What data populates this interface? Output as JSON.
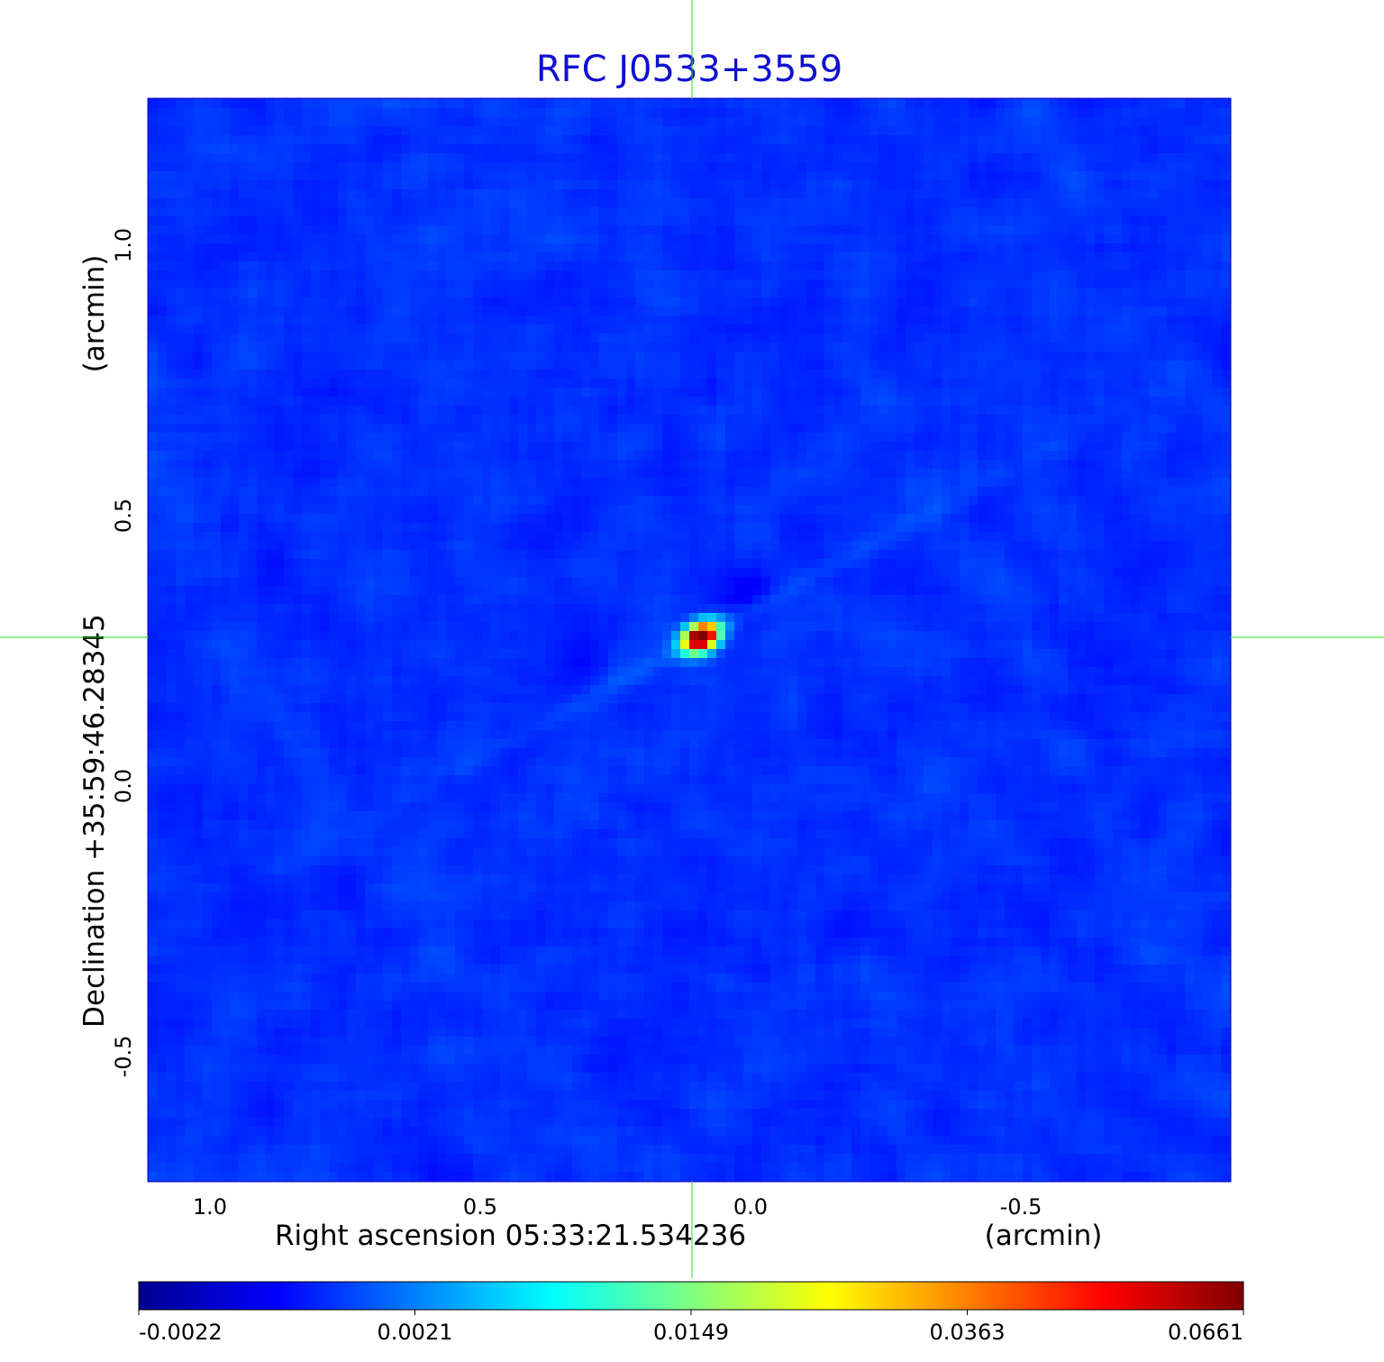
{
  "chart_data": {
    "type": "heatmap",
    "title": "RFC J0533+3559",
    "xlabel": "Right ascension  05:33:21.534236",
    "xunit": "(arcmin)",
    "ylabel": "Declination  +35:59:46.28345",
    "yunit": "(arcmin)",
    "x_ticks": [
      {
        "value": 1.0,
        "label": "1.0"
      },
      {
        "value": 0.5,
        "label": "0.5"
      },
      {
        "value": 0.0,
        "label": "0.0"
      },
      {
        "value": -0.5,
        "label": "-0.5"
      }
    ],
    "y_ticks": [
      {
        "value": 1.0,
        "label": "1.0"
      },
      {
        "value": 0.5,
        "label": "0.5"
      },
      {
        "value": 0.0,
        "label": "0.0"
      },
      {
        "value": -0.5,
        "label": "-0.5"
      }
    ],
    "xlim": [
      1.1,
      -0.9
    ],
    "ylim": [
      -0.73,
      1.27
    ],
    "grid": true,
    "crosshair": {
      "x": 0.095,
      "y": 0.275,
      "color": "#22dd22"
    },
    "peak": {
      "x": 0.078,
      "y": 0.275,
      "value": 0.0661
    },
    "colormap": "jet",
    "colorbar": {
      "orientation": "horizontal",
      "placement": "bottom",
      "ticks": [
        "-0.0022",
        "0.0021",
        "0.0149",
        "0.0363",
        "0.0661"
      ]
    }
  }
}
